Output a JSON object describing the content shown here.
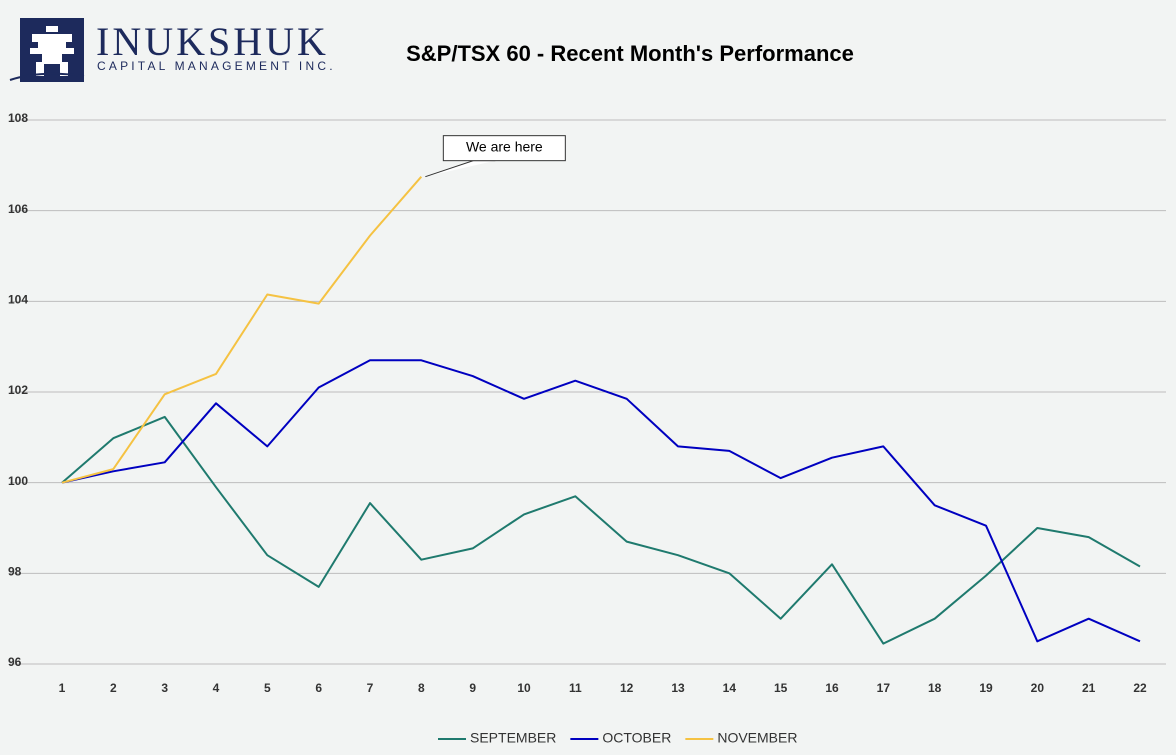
{
  "logo": {
    "name": "INUKSHUK",
    "tagline": "CAPITAL MANAGEMENT INC."
  },
  "chart_data": {
    "type": "line",
    "title": "S&P/TSX 60 - Recent Month's Performance",
    "categories": [
      "1",
      "2",
      "3",
      "4",
      "5",
      "6",
      "7",
      "8",
      "9",
      "10",
      "11",
      "12",
      "13",
      "14",
      "15",
      "16",
      "17",
      "18",
      "19",
      "20",
      "21",
      "22"
    ],
    "series": [
      {
        "name": "SEPTEMBER",
        "color": "#1f7a6e",
        "values": [
          100,
          100.98,
          101.45,
          99.9,
          98.4,
          97.7,
          99.55,
          98.3,
          98.55,
          99.3,
          99.7,
          98.7,
          98.4,
          98.0,
          97.0,
          98.2,
          96.45,
          97.0,
          97.95,
          99.0,
          98.8,
          98.15
        ]
      },
      {
        "name": "OCTOBER",
        "color": "#0000c0",
        "values": [
          100,
          100.25,
          100.45,
          101.75,
          100.8,
          102.1,
          102.7,
          102.7,
          102.35,
          101.85,
          102.25,
          101.85,
          100.8,
          100.7,
          100.1,
          100.55,
          100.8,
          99.5,
          99.05,
          96.5,
          97.0,
          96.5
        ]
      },
      {
        "name": "NOVEMBER",
        "color": "#f5c242",
        "values": [
          100,
          100.3,
          101.95,
          102.4,
          104.15,
          103.95,
          105.45,
          106.75,
          null,
          null,
          null,
          null,
          null,
          null,
          null,
          null,
          null,
          null,
          null,
          null,
          null,
          null
        ]
      }
    ],
    "ylim": [
      96,
      108
    ],
    "yticks": [
      96,
      98,
      100,
      102,
      104,
      106,
      108
    ],
    "grid": true,
    "legend": "bottom",
    "annotations": [
      {
        "text": "We are here"
      }
    ]
  }
}
